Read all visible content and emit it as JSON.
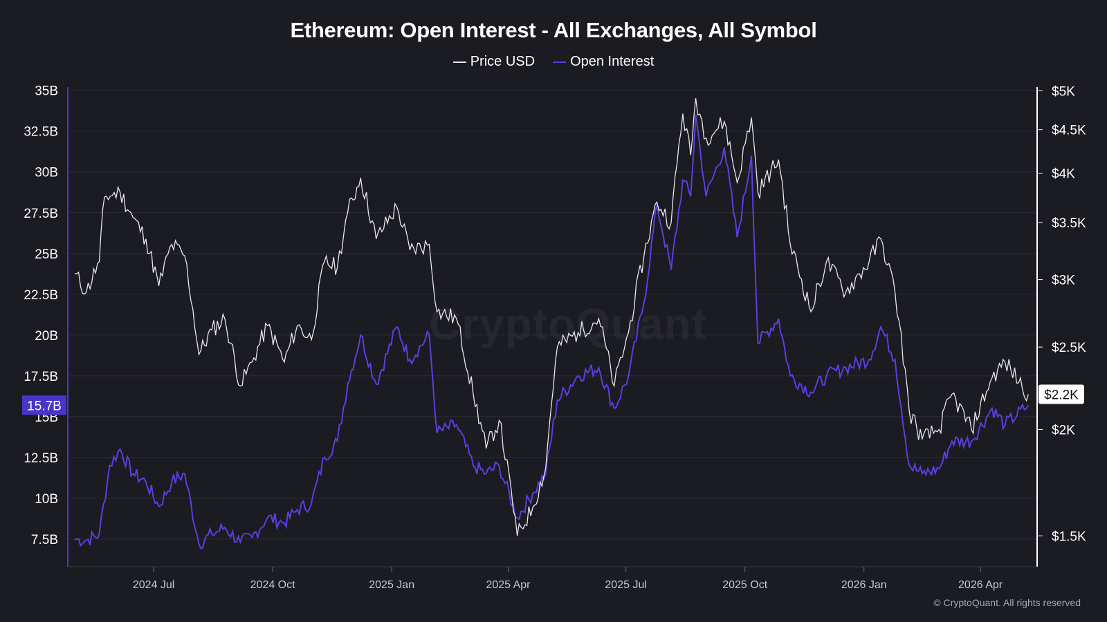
{
  "chart_data": {
    "type": "line",
    "title": "Ethereum: Open Interest - All Exchanges, All Symbol",
    "legend_position": "top-center",
    "grid": true,
    "x_ticks": [
      "2024 Jul",
      "2024 Oct",
      "2025 Jan",
      "2025 Apr",
      "2025 Jul",
      "2025 Oct",
      "2026 Jan",
      "2026 Apr"
    ],
    "xlim": [
      "2024-05-01",
      "2026-05-10"
    ],
    "y_left": {
      "ticks": [
        "35B",
        "32.5B",
        "30B",
        "27.5B",
        "25B",
        "22.5B",
        "20B",
        "17.5B",
        "15B",
        "12.5B",
        "10B",
        "7.5B"
      ],
      "tick_values": [
        35,
        32.5,
        30,
        27.5,
        25,
        22.5,
        20,
        17.5,
        15,
        12.5,
        10,
        7.5
      ],
      "unit": "billion USD",
      "range": [
        5.8,
        35.2
      ]
    },
    "y_right": {
      "ticks": [
        "$5K",
        "$4.5K",
        "$4K",
        "$3.5K",
        "$3K",
        "$2.5K",
        "$2K",
        "$1.5K"
      ],
      "tick_values": [
        5000,
        4500,
        4000,
        3500,
        3000,
        2500,
        2000,
        1500
      ],
      "scale": "log",
      "range": [
        1380,
        5050
      ]
    },
    "series": [
      {
        "name": "Price USD",
        "axis": "right",
        "color": "#e8e8ee",
        "current_label": "$2.2K",
        "points": [
          [
            "2024-05-01",
            3050
          ],
          [
            "2024-05-10",
            2900
          ],
          [
            "2024-05-20",
            3150
          ],
          [
            "2024-05-24",
            3750
          ],
          [
            "2024-06-05",
            3800
          ],
          [
            "2024-06-15",
            3550
          ],
          [
            "2024-06-25",
            3350
          ],
          [
            "2024-07-05",
            2950
          ],
          [
            "2024-07-15",
            3300
          ],
          [
            "2024-07-25",
            3200
          ],
          [
            "2024-08-05",
            2450
          ],
          [
            "2024-08-15",
            2620
          ],
          [
            "2024-08-25",
            2700
          ],
          [
            "2024-09-06",
            2250
          ],
          [
            "2024-09-15",
            2400
          ],
          [
            "2024-09-27",
            2650
          ],
          [
            "2024-10-10",
            2400
          ],
          [
            "2024-10-20",
            2650
          ],
          [
            "2024-10-31",
            2550
          ],
          [
            "2024-11-10",
            3150
          ],
          [
            "2024-11-20",
            3100
          ],
          [
            "2024-11-28",
            3600
          ],
          [
            "2024-12-08",
            3950
          ],
          [
            "2024-12-20",
            3350
          ],
          [
            "2025-01-05",
            3650
          ],
          [
            "2025-01-15",
            3250
          ],
          [
            "2025-01-30",
            3300
          ],
          [
            "2025-02-05",
            2750
          ],
          [
            "2025-02-20",
            2700
          ],
          [
            "2025-03-05",
            2200
          ],
          [
            "2025-03-15",
            1900
          ],
          [
            "2025-03-25",
            2050
          ],
          [
            "2025-04-08",
            1500
          ],
          [
            "2025-04-20",
            1620
          ],
          [
            "2025-04-30",
            1800
          ],
          [
            "2025-05-09",
            2500
          ],
          [
            "2025-05-25",
            2600
          ],
          [
            "2025-06-10",
            2700
          ],
          [
            "2025-06-22",
            2250
          ],
          [
            "2025-07-03",
            2600
          ],
          [
            "2025-07-15",
            3200
          ],
          [
            "2025-07-25",
            3700
          ],
          [
            "2025-08-05",
            3500
          ],
          [
            "2025-08-14",
            4700
          ],
          [
            "2025-08-20",
            4200
          ],
          [
            "2025-08-24",
            4900
          ],
          [
            "2025-09-01",
            4400
          ],
          [
            "2025-09-15",
            4600
          ],
          [
            "2025-09-25",
            3900
          ],
          [
            "2025-10-06",
            4650
          ],
          [
            "2025-10-11",
            3800
          ],
          [
            "2025-10-27",
            4150
          ],
          [
            "2025-11-05",
            3300
          ],
          [
            "2025-11-21",
            2750
          ],
          [
            "2025-12-03",
            3150
          ],
          [
            "2025-12-18",
            2900
          ],
          [
            "2026-01-05",
            3150
          ],
          [
            "2026-01-14",
            3350
          ],
          [
            "2026-01-25",
            2900
          ],
          [
            "2026-02-05",
            2100
          ],
          [
            "2026-02-15",
            1950
          ],
          [
            "2026-02-28",
            2000
          ],
          [
            "2026-03-10",
            2200
          ],
          [
            "2026-03-25",
            2000
          ],
          [
            "2026-04-10",
            2300
          ],
          [
            "2026-04-20",
            2400
          ],
          [
            "2026-05-08",
            2200
          ]
        ]
      },
      {
        "name": "Open Interest",
        "axis": "left",
        "color": "#5b3fe0",
        "unit": "billion USD",
        "current_label": "15.7B",
        "points": [
          [
            "2024-05-01",
            7.5
          ],
          [
            "2024-05-10",
            7.4
          ],
          [
            "2024-05-20",
            7.8
          ],
          [
            "2024-05-28",
            12.0
          ],
          [
            "2024-06-05",
            13.0
          ],
          [
            "2024-06-15",
            11.5
          ],
          [
            "2024-06-25",
            11.0
          ],
          [
            "2024-07-05",
            9.5
          ],
          [
            "2024-07-15",
            11.0
          ],
          [
            "2024-07-25",
            11.5
          ],
          [
            "2024-08-05",
            7.2
          ],
          [
            "2024-08-15",
            7.8
          ],
          [
            "2024-08-25",
            8.2
          ],
          [
            "2024-09-06",
            7.3
          ],
          [
            "2024-09-15",
            7.6
          ],
          [
            "2024-09-27",
            8.8
          ],
          [
            "2024-10-10",
            8.5
          ],
          [
            "2024-10-20",
            9.3
          ],
          [
            "2024-10-31",
            9.7
          ],
          [
            "2024-11-10",
            12.5
          ],
          [
            "2024-11-20",
            13.5
          ],
          [
            "2024-11-28",
            17.0
          ],
          [
            "2024-12-08",
            20.0
          ],
          [
            "2024-12-20",
            17.0
          ],
          [
            "2025-01-05",
            20.5
          ],
          [
            "2025-01-15",
            18.5
          ],
          [
            "2025-01-30",
            20.0
          ],
          [
            "2025-02-05",
            14.0
          ],
          [
            "2025-02-20",
            14.5
          ],
          [
            "2025-03-05",
            12.0
          ],
          [
            "2025-03-15",
            11.5
          ],
          [
            "2025-03-25",
            12.0
          ],
          [
            "2025-04-08",
            8.8
          ],
          [
            "2025-04-20",
            10.3
          ],
          [
            "2025-04-30",
            11.5
          ],
          [
            "2025-05-09",
            16.0
          ],
          [
            "2025-05-25",
            17.5
          ],
          [
            "2025-06-10",
            18.0
          ],
          [
            "2025-06-22",
            15.5
          ],
          [
            "2025-07-03",
            17.5
          ],
          [
            "2025-07-15",
            22.0
          ],
          [
            "2025-07-25",
            28.0
          ],
          [
            "2025-08-05",
            24.0
          ],
          [
            "2025-08-14",
            29.5
          ],
          [
            "2025-08-20",
            28.5
          ],
          [
            "2025-08-24",
            33.5
          ],
          [
            "2025-09-01",
            28.5
          ],
          [
            "2025-09-15",
            31.5
          ],
          [
            "2025-09-25",
            26.0
          ],
          [
            "2025-10-06",
            31.0
          ],
          [
            "2025-10-11",
            19.5
          ],
          [
            "2025-10-27",
            21.0
          ],
          [
            "2025-11-05",
            17.5
          ],
          [
            "2025-11-21",
            16.5
          ],
          [
            "2025-12-03",
            17.5
          ],
          [
            "2025-12-18",
            18.0
          ],
          [
            "2026-01-05",
            18.5
          ],
          [
            "2026-01-14",
            20.5
          ],
          [
            "2026-01-25",
            18.5
          ],
          [
            "2026-02-05",
            12.0
          ],
          [
            "2026-02-15",
            11.5
          ],
          [
            "2026-02-28",
            11.8
          ],
          [
            "2026-03-10",
            13.5
          ],
          [
            "2026-03-25",
            13.5
          ],
          [
            "2026-04-10",
            15.5
          ],
          [
            "2026-04-20",
            14.5
          ],
          [
            "2026-05-08",
            15.7
          ]
        ]
      }
    ]
  },
  "watermark": "CryptoQuant",
  "copyright": "© CryptoQuant. All rights reserved"
}
